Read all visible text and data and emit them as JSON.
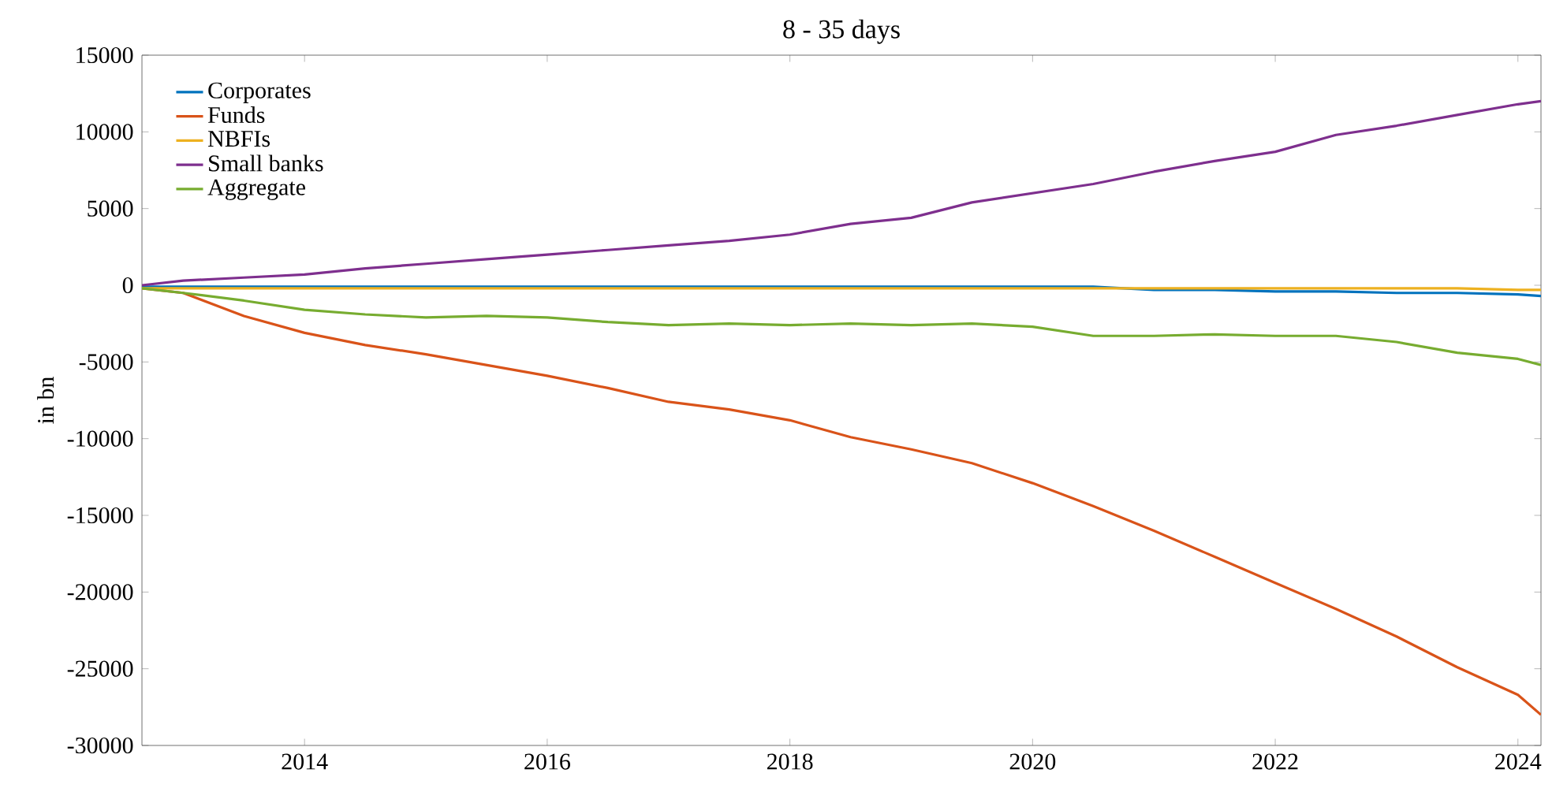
{
  "chart_data": {
    "type": "line",
    "title": "8 - 35 days",
    "ylabel": "in bn",
    "x": [
      2012.66,
      2013,
      2013.5,
      2014,
      2014.5,
      2015,
      2015.5,
      2016,
      2016.5,
      2017,
      2017.5,
      2018,
      2018.5,
      2019,
      2019.5,
      2020,
      2020.5,
      2021,
      2021.5,
      2022,
      2022.5,
      2023,
      2023.5,
      2024,
      2024.19
    ],
    "series": [
      {
        "name": "Corporates",
        "color": "#0072bd",
        "values": [
          -100,
          -100,
          -100,
          -100,
          -100,
          -100,
          -100,
          -100,
          -100,
          -100,
          -100,
          -100,
          -100,
          -100,
          -100,
          -100,
          -100,
          -300,
          -300,
          -400,
          -400,
          -500,
          -500,
          -600,
          -700
        ]
      },
      {
        "name": "Funds",
        "color": "#d95319",
        "values": [
          -200,
          -500,
          -2000,
          -3100,
          -3900,
          -4500,
          -5200,
          -5900,
          -6700,
          -7600,
          -8100,
          -8800,
          -9900,
          -10700,
          -11600,
          -12900,
          -14400,
          -16000,
          -17700,
          -19400,
          -21100,
          -22900,
          -24900,
          -26700,
          -28000
        ]
      },
      {
        "name": "NBFIs",
        "color": "#edb120",
        "values": [
          -200,
          -200,
          -200,
          -200,
          -200,
          -200,
          -200,
          -200,
          -200,
          -200,
          -200,
          -200,
          -200,
          -200,
          -200,
          -200,
          -200,
          -200,
          -200,
          -200,
          -200,
          -200,
          -200,
          -300,
          -300
        ]
      },
      {
        "name": "Small banks",
        "color": "#7e2f8e",
        "values": [
          0,
          300,
          500,
          700,
          1100,
          1400,
          1700,
          2000,
          2300,
          2600,
          2900,
          3300,
          4000,
          4400,
          5400,
          6000,
          6600,
          7400,
          8100,
          8700,
          9800,
          10400,
          11100,
          11800,
          12000
        ]
      },
      {
        "name": "Aggregate",
        "color": "#77ac30",
        "values": [
          -200,
          -500,
          -1000,
          -1600,
          -1900,
          -2100,
          -2000,
          -2100,
          -2400,
          -2600,
          -2500,
          -2600,
          -2500,
          -2600,
          -2500,
          -2700,
          -3300,
          -3300,
          -3200,
          -3300,
          -3300,
          -3700,
          -4400,
          -4800,
          -5200
        ]
      }
    ],
    "xlim": [
      2012.66,
      2024.19
    ],
    "ylim": [
      -30000,
      15000
    ],
    "xticks": [
      2014,
      2016,
      2018,
      2020,
      2022,
      2024
    ],
    "yticks": [
      -30000,
      -25000,
      -20000,
      -15000,
      -10000,
      -5000,
      0,
      5000,
      10000,
      15000
    ],
    "legend": "top left",
    "grid": false,
    "marker": "none",
    "line_style": "solid"
  }
}
